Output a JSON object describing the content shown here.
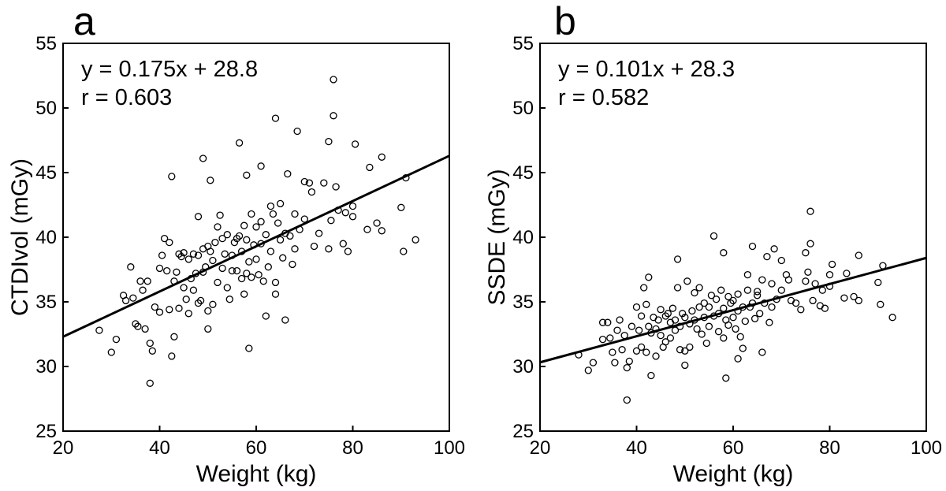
{
  "chart_data": [
    {
      "type": "scatter",
      "panel_label": "a",
      "xlabel": "Weight (kg)",
      "ylabel": "CTDIvol (mGy)",
      "xlim": [
        20,
        100
      ],
      "ylim": [
        25,
        55
      ],
      "xticks": [
        20,
        40,
        60,
        80,
        100
      ],
      "yticks": [
        25,
        30,
        35,
        40,
        45,
        50,
        55
      ],
      "annotation_line1": "y = 0.175x + 28.8",
      "annotation_line2": "r = 0.603",
      "fit": {
        "slope": 0.175,
        "intercept": 28.8
      },
      "points": [
        [
          27.5,
          32.8
        ],
        [
          30,
          31.1
        ],
        [
          31,
          32.1
        ],
        [
          32.5,
          35.5
        ],
        [
          33,
          35.1
        ],
        [
          34,
          37.7
        ],
        [
          34.5,
          35.3
        ],
        [
          35,
          33.3
        ],
        [
          35.5,
          33.1
        ],
        [
          36,
          36.6
        ],
        [
          36.5,
          35.9
        ],
        [
          37,
          32.9
        ],
        [
          37.5,
          36.6
        ],
        [
          38,
          31.8
        ],
        [
          38,
          28.7
        ],
        [
          38.5,
          31.2
        ],
        [
          39,
          34.6
        ],
        [
          40,
          37.6
        ],
        [
          40,
          34.2
        ],
        [
          40.5,
          38.6
        ],
        [
          41,
          39.9
        ],
        [
          41.5,
          37.4
        ],
        [
          42,
          39.6
        ],
        [
          42,
          34.4
        ],
        [
          42.5,
          44.7
        ],
        [
          42.5,
          30.8
        ],
        [
          43,
          36.6
        ],
        [
          43,
          32.3
        ],
        [
          43.5,
          37.3
        ],
        [
          44,
          38.7
        ],
        [
          44,
          34.5
        ],
        [
          44.5,
          38.5
        ],
        [
          45,
          36.1
        ],
        [
          45,
          38.8
        ],
        [
          45.5,
          35.2
        ],
        [
          46,
          38.3
        ],
        [
          46,
          34.1
        ],
        [
          46.5,
          36.8
        ],
        [
          47,
          38.7
        ],
        [
          47,
          35.9
        ],
        [
          47.5,
          37.2
        ],
        [
          48,
          38.6
        ],
        [
          48,
          34.9
        ],
        [
          48,
          41.6
        ],
        [
          48.5,
          35.1
        ],
        [
          49,
          37.3
        ],
        [
          49,
          39.1
        ],
        [
          49,
          46.1
        ],
        [
          49.5,
          37.7
        ],
        [
          50,
          39.3
        ],
        [
          50,
          34.3
        ],
        [
          50,
          32.9
        ],
        [
          50.5,
          38.9
        ],
        [
          50.5,
          44.4
        ],
        [
          51,
          38.2
        ],
        [
          51,
          34.8
        ],
        [
          51.5,
          39.6
        ],
        [
          52,
          40.8
        ],
        [
          52,
          36.5
        ],
        [
          52.5,
          41.7
        ],
        [
          53,
          39.9
        ],
        [
          53,
          37.6
        ],
        [
          53.5,
          38.7
        ],
        [
          54,
          40.2
        ],
        [
          54,
          36.1
        ],
        [
          54.5,
          35.2
        ],
        [
          55,
          38.6
        ],
        [
          55,
          37.4
        ],
        [
          55.5,
          39.6
        ],
        [
          56,
          39.9
        ],
        [
          56,
          37.4
        ],
        [
          56.5,
          40.1
        ],
        [
          56.5,
          47.3
        ],
        [
          57,
          38.9
        ],
        [
          57,
          36.8
        ],
        [
          57.5,
          40.9
        ],
        [
          57.5,
          35.6
        ],
        [
          58,
          39.8
        ],
        [
          58,
          37.2
        ],
        [
          58,
          44.8
        ],
        [
          58.5,
          38.1
        ],
        [
          58.5,
          31.4
        ],
        [
          59,
          41.8
        ],
        [
          59,
          36.9
        ],
        [
          59.5,
          39.4
        ],
        [
          60,
          40.8
        ],
        [
          60,
          38.3
        ],
        [
          60.5,
          37.1
        ],
        [
          61,
          41.2
        ],
        [
          61,
          39.5
        ],
        [
          61,
          45.5
        ],
        [
          61.5,
          36.6
        ],
        [
          62,
          40.2
        ],
        [
          62,
          33.9
        ],
        [
          62.5,
          37.7
        ],
        [
          63,
          42.4
        ],
        [
          63,
          38.9
        ],
        [
          63.5,
          41.8
        ],
        [
          64,
          36.5
        ],
        [
          64,
          49.2
        ],
        [
          64,
          35.6
        ],
        [
          64.5,
          41.1
        ],
        [
          65,
          39.8
        ],
        [
          65,
          42.6
        ],
        [
          65.5,
          38.4
        ],
        [
          66,
          40.3
        ],
        [
          66,
          33.6
        ],
        [
          66.5,
          44.9
        ],
        [
          67,
          40.1
        ],
        [
          67.5,
          37.9
        ],
        [
          68,
          41.8
        ],
        [
          68,
          39.1
        ],
        [
          68.5,
          48.2
        ],
        [
          69,
          40.6
        ],
        [
          70,
          44.3
        ],
        [
          70,
          41.4
        ],
        [
          71,
          44.2
        ],
        [
          71.5,
          43.5
        ],
        [
          72,
          39.3
        ],
        [
          73,
          40.3
        ],
        [
          74,
          44.2
        ],
        [
          75,
          47.4
        ],
        [
          75,
          39.1
        ],
        [
          75.5,
          41.3
        ],
        [
          76,
          52.2
        ],
        [
          76,
          49.4
        ],
        [
          76.5,
          43.9
        ],
        [
          77,
          42.1
        ],
        [
          78,
          39.5
        ],
        [
          78.5,
          41.9
        ],
        [
          79,
          38.9
        ],
        [
          80,
          41.6
        ],
        [
          80,
          42.4
        ],
        [
          80.5,
          47.2
        ],
        [
          83,
          40.6
        ],
        [
          83.5,
          45.4
        ],
        [
          85,
          41.1
        ],
        [
          86,
          46.2
        ],
        [
          86,
          40.5
        ],
        [
          90,
          42.3
        ],
        [
          90.5,
          38.9
        ],
        [
          91,
          44.6
        ],
        [
          93,
          39.8
        ]
      ]
    },
    {
      "type": "scatter",
      "panel_label": "b",
      "xlabel": "Weight (kg)",
      "ylabel": "SSDE (mGy)",
      "xlim": [
        20,
        100
      ],
      "ylim": [
        25,
        55
      ],
      "xticks": [
        20,
        40,
        60,
        80,
        100
      ],
      "yticks": [
        25,
        30,
        35,
        40,
        45,
        50,
        55
      ],
      "annotation_line1": "y = 0.101x + 28.3",
      "annotation_line2": "r = 0.582",
      "fit": {
        "slope": 0.101,
        "intercept": 28.3
      },
      "points": [
        [
          28,
          30.9
        ],
        [
          30,
          29.7
        ],
        [
          31,
          30.3
        ],
        [
          33,
          33.4
        ],
        [
          33,
          32.1
        ],
        [
          34,
          33.4
        ],
        [
          34.5,
          32.2
        ],
        [
          35,
          31.1
        ],
        [
          35.5,
          30.3
        ],
        [
          36,
          32.8
        ],
        [
          36.5,
          33.6
        ],
        [
          37,
          31.3
        ],
        [
          37.5,
          32.4
        ],
        [
          38,
          29.9
        ],
        [
          38,
          27.4
        ],
        [
          38.5,
          30.4
        ],
        [
          39,
          33.1
        ],
        [
          40,
          34.6
        ],
        [
          40,
          31.2
        ],
        [
          40.5,
          32.8
        ],
        [
          41,
          33.9
        ],
        [
          41,
          31.5
        ],
        [
          41.5,
          36.1
        ],
        [
          42,
          34.8
        ],
        [
          42,
          31.1
        ],
        [
          42.5,
          33.1
        ],
        [
          42.5,
          36.9
        ],
        [
          43,
          32.6
        ],
        [
          43,
          29.3
        ],
        [
          43.5,
          33.8
        ],
        [
          44,
          32.9
        ],
        [
          44,
          30.8
        ],
        [
          44.5,
          33.6
        ],
        [
          45,
          32.4
        ],
        [
          45,
          34.4
        ],
        [
          45.5,
          31.5
        ],
        [
          46,
          33.9
        ],
        [
          46,
          31.9
        ],
        [
          46.5,
          34.1
        ],
        [
          47,
          32.2
        ],
        [
          47,
          33.4
        ],
        [
          47.5,
          34.5
        ],
        [
          48,
          32.8
        ],
        [
          48,
          33.6
        ],
        [
          48.5,
          36.1
        ],
        [
          48.5,
          38.3
        ],
        [
          49,
          33.1
        ],
        [
          49,
          31.3
        ],
        [
          49.5,
          34.1
        ],
        [
          50,
          31.2
        ],
        [
          50,
          33.8
        ],
        [
          50,
          30.1
        ],
        [
          50.5,
          36.6
        ],
        [
          51,
          33.3
        ],
        [
          51,
          31.5
        ],
        [
          51.5,
          34.3
        ],
        [
          52,
          33.6
        ],
        [
          52,
          35.7
        ],
        [
          52.5,
          32.9
        ],
        [
          53,
          34.6
        ],
        [
          53,
          36.1
        ],
        [
          53.5,
          32.5
        ],
        [
          54,
          34.9
        ],
        [
          54,
          33.8
        ],
        [
          54.5,
          31.8
        ],
        [
          55,
          34.6
        ],
        [
          55,
          33.1
        ],
        [
          55.5,
          35.5
        ],
        [
          56,
          33.9
        ],
        [
          56,
          40.1
        ],
        [
          56.5,
          35.2
        ],
        [
          57,
          34.1
        ],
        [
          57,
          32.7
        ],
        [
          57.5,
          35.9
        ],
        [
          58,
          34.5
        ],
        [
          58,
          32.2
        ],
        [
          58,
          38.8
        ],
        [
          58.5,
          33.6
        ],
        [
          58.5,
          29.1
        ],
        [
          59,
          35.4
        ],
        [
          59,
          33.2
        ],
        [
          59.5,
          34.9
        ],
        [
          60,
          35.1
        ],
        [
          60,
          33.8
        ],
        [
          60.5,
          32.9
        ],
        [
          61,
          35.6
        ],
        [
          61,
          34.3
        ],
        [
          61,
          30.6
        ],
        [
          61.5,
          32.3
        ],
        [
          62,
          34.6
        ],
        [
          62,
          31.4
        ],
        [
          62.5,
          33.5
        ],
        [
          63,
          37.1
        ],
        [
          63,
          35.9
        ],
        [
          63.5,
          34.6
        ],
        [
          64,
          39.3
        ],
        [
          64,
          34.9
        ],
        [
          64.5,
          33.7
        ],
        [
          65,
          35.5
        ],
        [
          65,
          35.8
        ],
        [
          65.5,
          34.1
        ],
        [
          66,
          36.7
        ],
        [
          66,
          31.1
        ],
        [
          66.5,
          34.9
        ],
        [
          67,
          38.5
        ],
        [
          67.5,
          33.4
        ],
        [
          68,
          36.4
        ],
        [
          68,
          34.6
        ],
        [
          68.5,
          39.1
        ],
        [
          69,
          35.2
        ],
        [
          70,
          38.2
        ],
        [
          70,
          35.9
        ],
        [
          71,
          37.1
        ],
        [
          71.5,
          36.7
        ],
        [
          72,
          35.1
        ],
        [
          73,
          34.9
        ],
        [
          74,
          34.4
        ],
        [
          75,
          38.8
        ],
        [
          75,
          36.6
        ],
        [
          75.5,
          37.3
        ],
        [
          76,
          42.0
        ],
        [
          76,
          39.5
        ],
        [
          76.5,
          35.1
        ],
        [
          77,
          36.4
        ],
        [
          78,
          34.7
        ],
        [
          78.5,
          35.9
        ],
        [
          79,
          34.5
        ],
        [
          80,
          37.1
        ],
        [
          80,
          36.2
        ],
        [
          80.5,
          37.9
        ],
        [
          83,
          35.3
        ],
        [
          83.5,
          37.2
        ],
        [
          85,
          35.4
        ],
        [
          86,
          38.6
        ],
        [
          86,
          35.1
        ],
        [
          90,
          36.5
        ],
        [
          90.5,
          34.8
        ],
        [
          91,
          37.8
        ],
        [
          93,
          33.8
        ]
      ]
    }
  ]
}
